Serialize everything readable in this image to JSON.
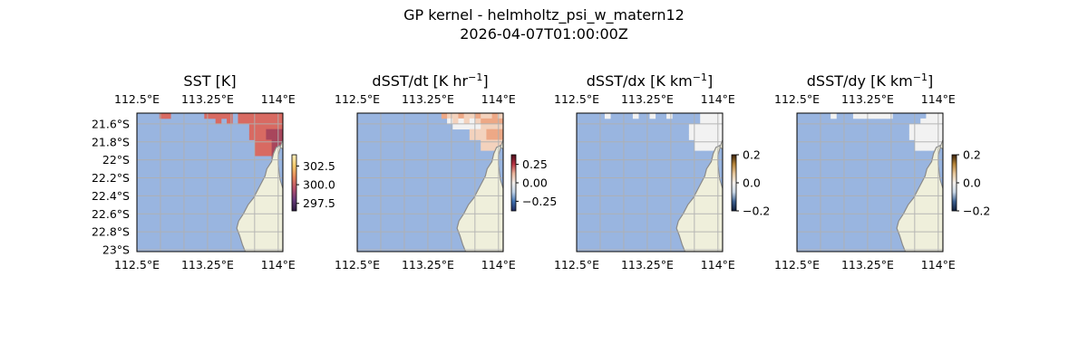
{
  "figure": {
    "title_line1": "GP kernel - helmholtz_psi_w_matern12",
    "title_line2": "2026-04-07T01:00:00Z"
  },
  "colors": {
    "ocean": "#99b5e0",
    "land": "#efefdb",
    "coast": "#8a8a8a",
    "grid": "#b0b0b0",
    "sst_warm": "#d86a62",
    "sst_hot": "#a8465c",
    "sst_purple": "#5a2f6e",
    "anom_light": "#f3d2bd",
    "anom_mid": "#eda886",
    "anom_strong": "#c1324a",
    "near_white": "#f2f2f2"
  },
  "chart_data": [
    {
      "type": "heatmap",
      "id": "sst",
      "title": "SST [K]",
      "x_ticks": [
        "112.5°E",
        "113.25°E",
        "114°E"
      ],
      "y_ticks": [
        "21.6°S",
        "21.8°S",
        "22°S",
        "22.2°S",
        "22.4°S",
        "22.6°S",
        "22.8°S",
        "23°S"
      ],
      "xlim": [
        112.5,
        114.05
      ],
      "ylim": [
        -23.02,
        -21.48
      ],
      "colorbar": {
        "ticks": [
          "302.5",
          "300.0",
          "297.5"
        ],
        "range": [
          296.5,
          304.0
        ],
        "colormap": "thermal"
      },
      "field_levels": "0=no data, 1=warm, 2=hot, 3=peak"
    },
    {
      "type": "heatmap",
      "id": "dsst_dt",
      "title": "dSST/dt [K hr",
      "title_sup": "−1",
      "title_end": "]",
      "x_ticks": [
        "112.5°E",
        "113.25°E",
        "114°E"
      ],
      "xlim": [
        112.5,
        114.05
      ],
      "ylim": [
        -23.02,
        -21.48
      ],
      "colorbar": {
        "ticks": [
          "0.25",
          "0.00",
          "−0.25"
        ],
        "range": [
          -0.38,
          0.38
        ],
        "colormap": "balance"
      }
    },
    {
      "type": "heatmap",
      "id": "dsst_dx",
      "title": "dSST/dx [K km",
      "title_sup": "−1",
      "title_end": "]",
      "x_ticks": [
        "112.5°E",
        "113.25°E",
        "114°E"
      ],
      "xlim": [
        112.5,
        114.05
      ],
      "ylim": [
        -23.02,
        -21.48
      ],
      "colorbar": {
        "ticks": [
          "0.2",
          "0.0",
          "−0.2"
        ],
        "range": [
          -0.2,
          0.2
        ],
        "colormap": "diverging-dark"
      }
    },
    {
      "type": "heatmap",
      "id": "dsst_dy",
      "title": "dSST/dy [K km",
      "title_sup": "−1",
      "title_end": "]",
      "x_ticks": [
        "112.5°E",
        "113.25°E",
        "114°E"
      ],
      "xlim": [
        112.5,
        114.05
      ],
      "ylim": [
        -23.02,
        -21.48
      ],
      "colorbar": {
        "ticks": [
          "0.2",
          "0.0",
          "−0.2"
        ],
        "range": [
          -0.2,
          0.2
        ],
        "colormap": "diverging-dark"
      }
    }
  ]
}
